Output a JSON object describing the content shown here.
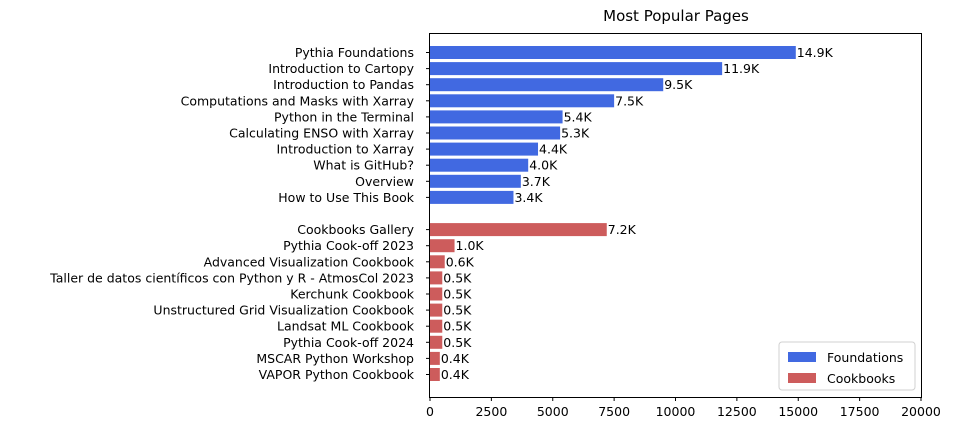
{
  "chart_data": {
    "type": "bar",
    "orientation": "horizontal",
    "title": "Most Popular Pages",
    "xlabel": "",
    "ylabel": "",
    "xlim": [
      0,
      20000
    ],
    "xticks": [
      0,
      2500,
      5000,
      7500,
      10000,
      12500,
      15000,
      17500,
      20000
    ],
    "grid": false,
    "legend_position": "bottom-right",
    "series": [
      {
        "name": "Foundations",
        "color": "#4169e1",
        "categories": [
          "Pythia Foundations",
          "Introduction to Cartopy",
          "Introduction to Pandas",
          "Computations and Masks with Xarray",
          "Python in the Terminal",
          "Calculating ENSO with Xarray",
          "Introduction to Xarray",
          "What is GitHub?",
          "Overview",
          "How to Use This Book"
        ],
        "values": [
          14900,
          11900,
          9500,
          7500,
          5400,
          5300,
          4400,
          4000,
          3700,
          3400
        ],
        "labels": [
          "14.9K",
          "11.9K",
          "9.5K",
          "7.5K",
          "5.4K",
          "5.3K",
          "4.4K",
          "4.0K",
          "3.7K",
          "3.4K"
        ]
      },
      {
        "name": "Cookbooks",
        "color": "#cd5c5c",
        "categories": [
          "Cookbooks Gallery",
          "Pythia Cook-off 2023",
          "Advanced Visualization Cookbook",
          "Taller de datos científicos con Python y R - AtmosCol 2023",
          "Kerchunk Cookbook",
          "Unstructured Grid Visualization Cookbook",
          "Landsat ML Cookbook",
          "Pythia Cook-off 2024",
          "MSCAR Python Workshop",
          "VAPOR Python Cookbook"
        ],
        "values": [
          7200,
          1000,
          600,
          500,
          500,
          500,
          500,
          500,
          400,
          400
        ],
        "labels": [
          "7.2K",
          "1.0K",
          "0.6K",
          "0.5K",
          "0.5K",
          "0.5K",
          "0.5K",
          "0.5K",
          "0.4K",
          "0.4K"
        ]
      }
    ]
  }
}
